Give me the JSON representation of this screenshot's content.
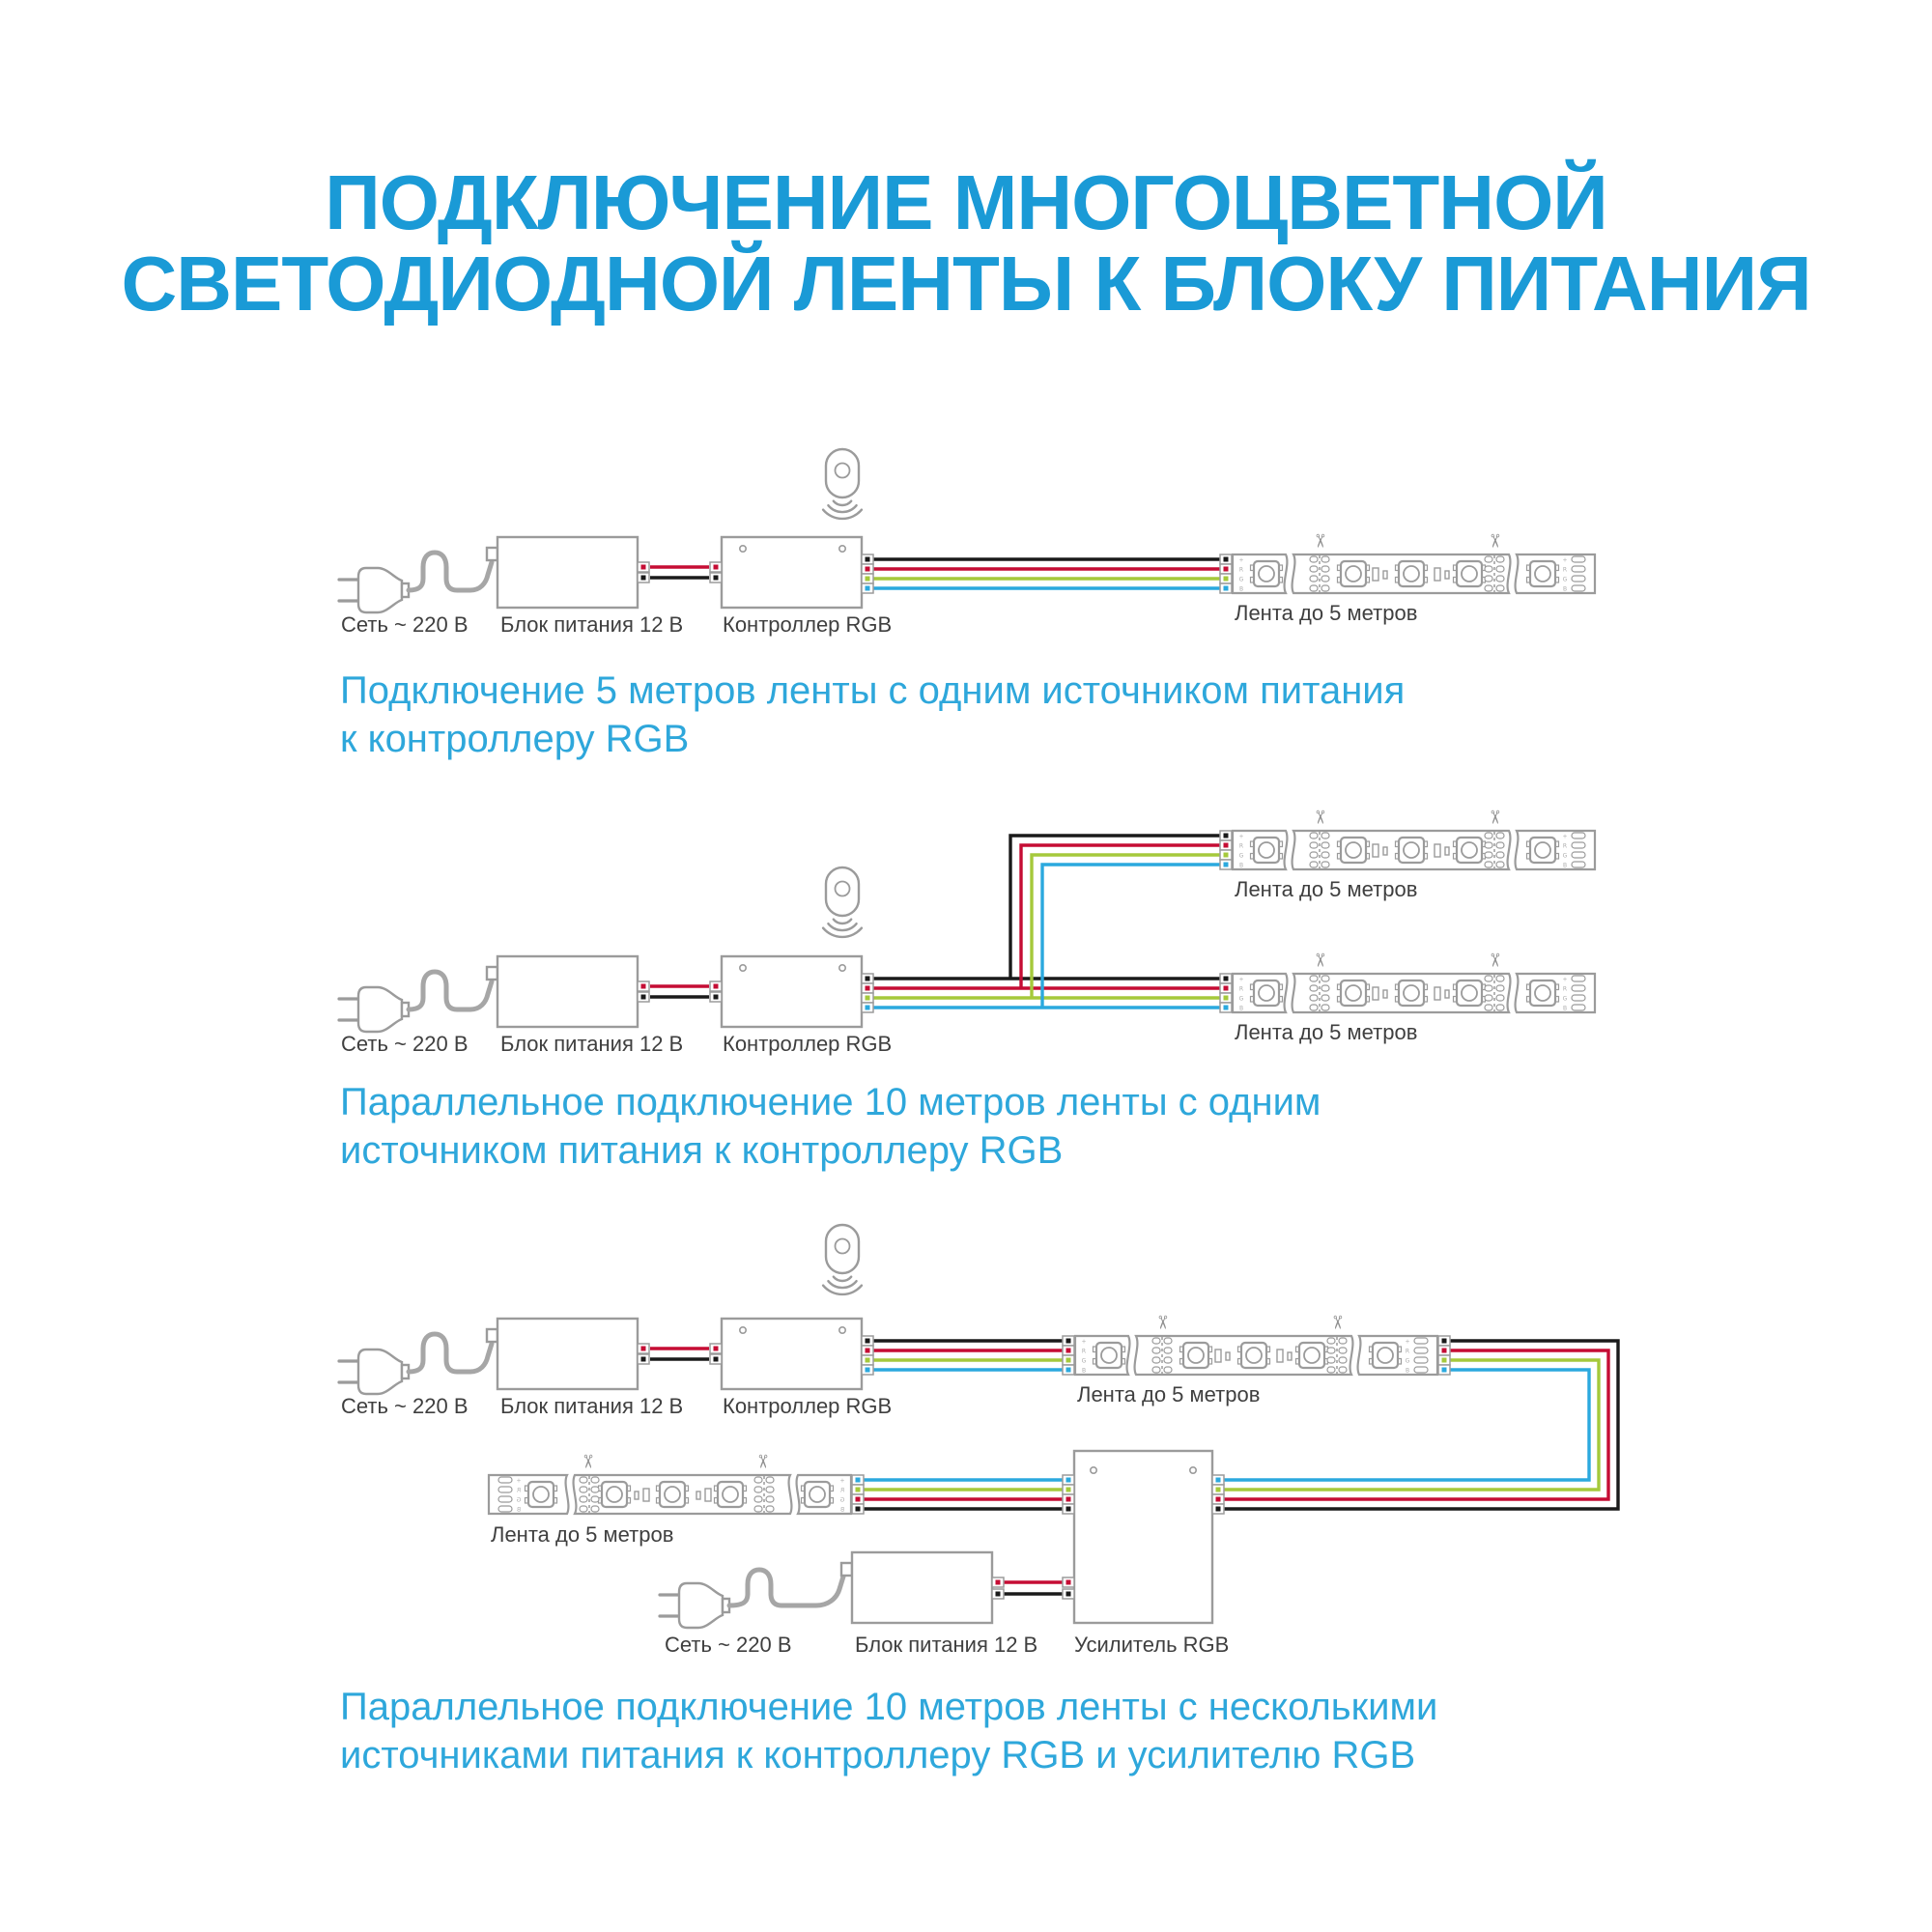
{
  "title": {
    "line1": "ПОДКЛЮЧЕНИЕ МНОГОЦВЕТНОЙ",
    "line2": "СВЕТОДИОДНОЙ ЛЕНТЫ К БЛОКУ ПИТАНИЯ"
  },
  "labels": {
    "mains": "Сеть ~ 220 В",
    "psu": "Блок питания 12 В",
    "controller": "Контроллер RGB",
    "strip": "Лента до 5 метров",
    "amplifier": "Усилитель RGB"
  },
  "captions": {
    "diagram1": {
      "line1": "Подключение 5 метров ленты с одним источником питания",
      "line2": "к контроллеру RGB"
    },
    "diagram2": {
      "line1": "Параллельное подключение 10 метров ленты с одним",
      "line2": "источником питания к контроллеру RGB"
    },
    "diagram3": {
      "line1": "Параллельное подключение 10 метров ленты с несколькими",
      "line2": "источниками питания к контроллеру RGB и усилителю RGB"
    }
  },
  "icons": {
    "scissors": "✂"
  },
  "strip_pads": [
    "+",
    "R",
    "G",
    "B"
  ],
  "colors": {
    "title_blue": "#1a9ad6",
    "caption_blue": "#2ea7db",
    "label_dark": "#3f3f3f",
    "outline_gray": "#9b9b9b",
    "cord_gray": "#a6a6a6",
    "wire_black": "#1a1a1a",
    "wire_red": "#c50d34",
    "wire_green": "#a5c93b",
    "wire_blue": "#2ba9de"
  }
}
